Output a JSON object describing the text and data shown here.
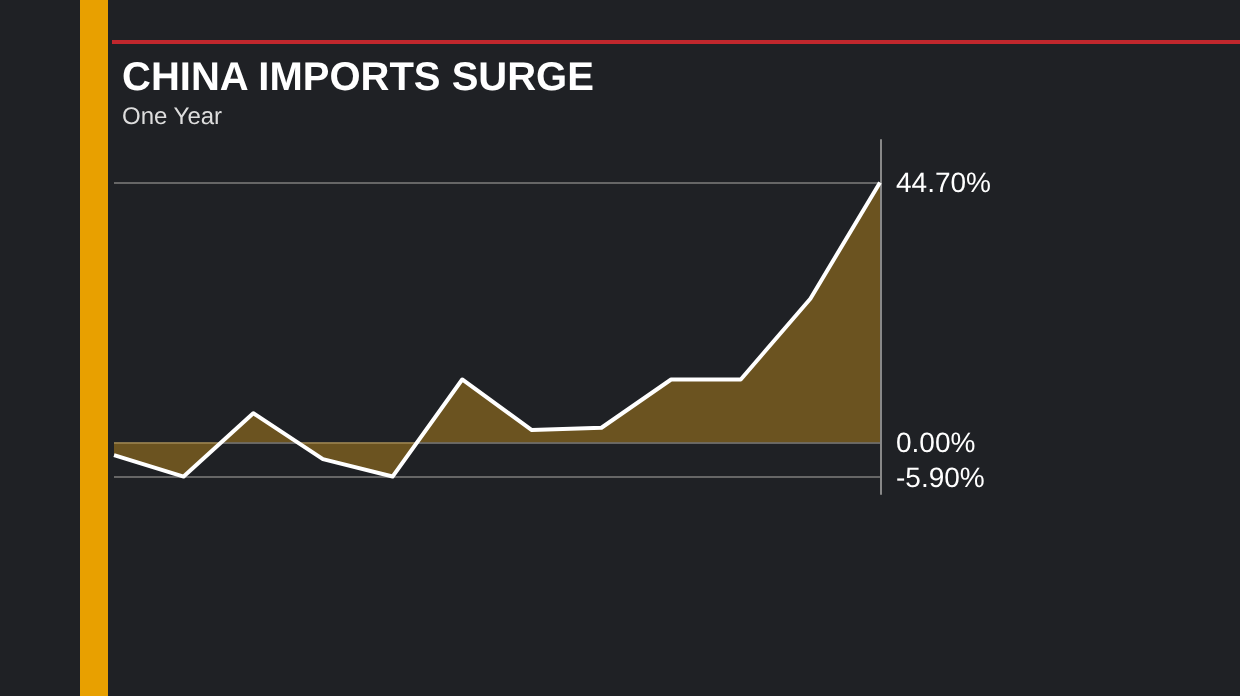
{
  "chart_data": {
    "type": "area",
    "title": "CHINA IMPORTS SURGE",
    "subtitle": "One Year",
    "categories": [
      null,
      null,
      null,
      null,
      null,
      null,
      null,
      null,
      null,
      null,
      null,
      null
    ],
    "series": [
      {
        "color": "#c8901a",
        "values": [
          -2.2,
          -5.9,
          5.0,
          -2.9,
          -5.9,
          10.8,
          2.1,
          2.5,
          10.8,
          10.8,
          24.7,
          44.7
        ]
      }
    ],
    "ylim": [
      -8.9,
      52
    ],
    "yticks": [
      {
        "value": -5.9,
        "label": "-5.90%"
      },
      {
        "value": 0,
        "label": "0.00%"
      },
      {
        "value": 44.7,
        "label": "44.70%"
      }
    ],
    "grid": "y",
    "marker": "none",
    "line_style": "solid"
  }
}
